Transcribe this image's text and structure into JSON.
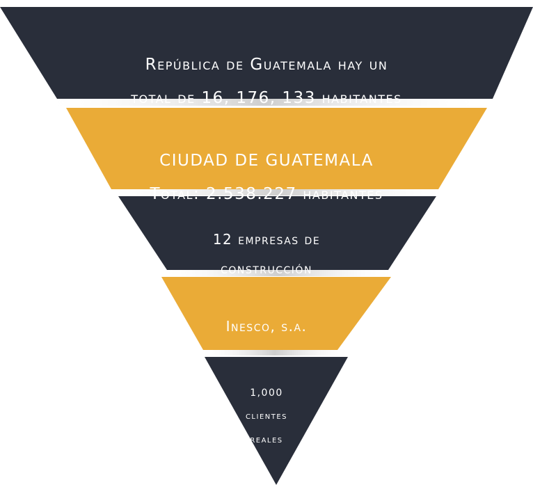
{
  "colors": {
    "dark": "#292e3a",
    "gold": "#eaab37",
    "text": "#ffffff",
    "shadow": "#d2d2d2"
  },
  "levels": [
    {
      "id": "guatemala-country",
      "color": "dark",
      "lines": [
        "República de Guatemala hay un",
        "total de 16, 176, 133 habitantes"
      ]
    },
    {
      "id": "guatemala-city",
      "color": "gold",
      "lines": [
        "CIUDAD DE GUATEMALA",
        "Total: 2.538.227 habitantes"
      ]
    },
    {
      "id": "construction-companies",
      "color": "dark",
      "lines": [
        "12 empresas de",
        "construcción"
      ]
    },
    {
      "id": "inesco",
      "color": "gold",
      "lines": [
        "Inesco, s.a."
      ]
    },
    {
      "id": "real-clients",
      "color": "dark",
      "lines": [
        "1,000",
        "clientes",
        "reales"
      ]
    }
  ]
}
